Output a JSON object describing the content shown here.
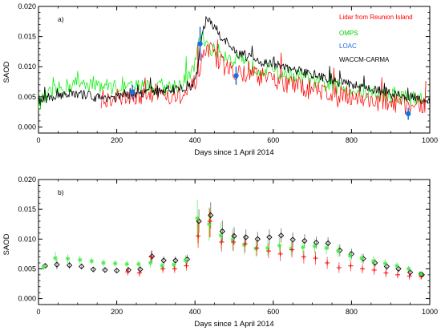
{
  "chart_data": [
    {
      "type": "line",
      "panel_label": "a)",
      "xlabel": "Days since 1 April 2014",
      "ylabel": "SAOD",
      "xlim": [
        0,
        1000
      ],
      "ylim": [
        -0.001,
        0.02
      ],
      "xticks": [
        "0",
        "200",
        "400",
        "600",
        "800",
        "1000"
      ],
      "yticks": [
        "0.000",
        "0.005",
        "0.010",
        "0.015",
        "0.020"
      ],
      "legend_position": "top-right",
      "series": [
        {
          "name": "Lidar from Reunion Island",
          "color": "#ff0000",
          "style": "noisy-line",
          "x": [
            160,
            190,
            220,
            250,
            280,
            310,
            340,
            370,
            395,
            410,
            420,
            440,
            460,
            480,
            500,
            520,
            540,
            560,
            580,
            600,
            630,
            660,
            690,
            720,
            750,
            780,
            810,
            840,
            870,
            900,
            930,
            960,
            990
          ],
          "y": [
            0.0045,
            0.005,
            0.0048,
            0.0052,
            0.0055,
            0.0058,
            0.0052,
            0.005,
            0.0065,
            0.009,
            0.0115,
            0.0125,
            0.011,
            0.0098,
            0.0095,
            0.0088,
            0.0092,
            0.0085,
            0.008,
            0.0078,
            0.0072,
            0.0068,
            0.0062,
            0.006,
            0.0058,
            0.0055,
            0.005,
            0.0045,
            0.0042,
            0.004,
            0.0038,
            0.0036,
            0.0035
          ]
        },
        {
          "name": "OMPS",
          "color": "#00ee00",
          "style": "noisy-line",
          "x": [
            0,
            30,
            60,
            90,
            120,
            150,
            180,
            210,
            240,
            270,
            300,
            330,
            360,
            390,
            405,
            415,
            425,
            440,
            460,
            480,
            500,
            520,
            540,
            560,
            580,
            600,
            630,
            660,
            690,
            720,
            750,
            780,
            810,
            840,
            870,
            900,
            930,
            960,
            990
          ],
          "y": [
            0.004,
            0.0055,
            0.0065,
            0.0072,
            0.0075,
            0.007,
            0.0068,
            0.0065,
            0.0066,
            0.0068,
            0.0065,
            0.0066,
            0.007,
            0.0085,
            0.012,
            0.0155,
            0.0145,
            0.013,
            0.0125,
            0.012,
            0.0112,
            0.0105,
            0.01,
            0.0098,
            0.0095,
            0.0092,
            0.0088,
            0.0085,
            0.0078,
            0.0072,
            0.0068,
            0.0065,
            0.006,
            0.0058,
            0.0055,
            0.0053,
            0.005,
            0.0047,
            0.0045
          ]
        },
        {
          "name": "LOAC",
          "color": "#1a6fdd",
          "style": "points-errorbars",
          "x": [
            240,
            413,
            505,
            945
          ],
          "y": [
            0.0058,
            0.0138,
            0.0085,
            0.0022
          ],
          "err": [
            0.0012,
            0.0028,
            0.0015,
            0.001
          ]
        },
        {
          "name": "WACCM-CARMA",
          "color": "#000000",
          "style": "noisy-line",
          "x": [
            0,
            20,
            40,
            60,
            80,
            100,
            120,
            140,
            160,
            180,
            200,
            220,
            240,
            260,
            280,
            300,
            320,
            340,
            360,
            380,
            395,
            405,
            415,
            425,
            435,
            450,
            470,
            490,
            510,
            530,
            550,
            570,
            590,
            610,
            630,
            650,
            670,
            690,
            710,
            730,
            750,
            770,
            790,
            810,
            830,
            850,
            870,
            890,
            910,
            930,
            950,
            970,
            990,
            1000
          ],
          "y": [
            0.0042,
            0.0048,
            0.005,
            0.0055,
            0.0056,
            0.0052,
            0.0054,
            0.005,
            0.0048,
            0.005,
            0.0049,
            0.0052,
            0.0055,
            0.0054,
            0.0058,
            0.006,
            0.0062,
            0.0063,
            0.0063,
            0.0065,
            0.0068,
            0.009,
            0.0145,
            0.017,
            0.018,
            0.0165,
            0.0148,
            0.0132,
            0.0122,
            0.0118,
            0.0112,
            0.0108,
            0.0105,
            0.0102,
            0.0098,
            0.0095,
            0.0092,
            0.0088,
            0.0085,
            0.0082,
            0.0078,
            0.0075,
            0.0072,
            0.007,
            0.0066,
            0.0063,
            0.006,
            0.0058,
            0.0055,
            0.0052,
            0.005,
            0.0047,
            0.0045,
            0.0044
          ]
        }
      ]
    },
    {
      "type": "scatter",
      "panel_label": "b)",
      "xlabel": "Days since 1 April 2014",
      "ylabel": "SAOD",
      "xlim": [
        0,
        1000
      ],
      "ylim": [
        -0.001,
        0.02
      ],
      "xticks": [
        "0",
        "200",
        "400",
        "600",
        "800",
        "1000"
      ],
      "yticks": [
        "0.000",
        "0.005",
        "0.010",
        "0.015",
        "0.020"
      ],
      "series": [
        {
          "marker": "diamond",
          "color": "#000000",
          "x": [
            15,
            45,
            77,
            108,
            138,
            168,
            198,
            228,
            258,
            288,
            318,
            348,
            378,
            408,
            438,
            468,
            498,
            528,
            558,
            588,
            618,
            648,
            678,
            708,
            738,
            768,
            798,
            828,
            858,
            888,
            918,
            948,
            978
          ],
          "y": [
            0.0055,
            0.0057,
            0.0056,
            0.0054,
            0.0049,
            0.0048,
            0.0047,
            0.0048,
            0.0049,
            0.0071,
            0.0064,
            0.0064,
            0.0066,
            0.013,
            0.014,
            0.0113,
            0.0105,
            0.0103,
            0.01,
            0.0103,
            0.0106,
            0.0099,
            0.0097,
            0.0094,
            0.0093,
            0.0081,
            0.0075,
            0.0067,
            0.006,
            0.0054,
            0.005,
            0.0044,
            0.004
          ],
          "err": [
            0.0004,
            0.0008,
            0.0006,
            0.0005,
            0.0004,
            0.0004,
            0.0004,
            0.0005,
            0.0006,
            0.001,
            0.0007,
            0.0007,
            0.0008,
            0.002,
            0.0022,
            0.0018,
            0.0015,
            0.0013,
            0.0012,
            0.0013,
            0.0012,
            0.0012,
            0.0011,
            0.001,
            0.001,
            0.001,
            0.0009,
            0.0008,
            0.0007,
            0.0006,
            0.0005,
            0.0005,
            0.0004
          ]
        },
        {
          "marker": "asterisk",
          "color": "#44ee44",
          "x": [
            15,
            45,
            77,
            108,
            138,
            168,
            198,
            228,
            258,
            288,
            318,
            348,
            378,
            408,
            438,
            468,
            498,
            528,
            558,
            588,
            618,
            648,
            678,
            708,
            738,
            768,
            798,
            828,
            858,
            888,
            918,
            948,
            978
          ],
          "y": [
            0.0053,
            0.0068,
            0.0067,
            0.0065,
            0.0063,
            0.006,
            0.0059,
            0.0058,
            0.0058,
            0.006,
            0.0055,
            0.0057,
            0.0064,
            0.0135,
            0.0125,
            0.0106,
            0.0099,
            0.009,
            0.0084,
            0.0085,
            0.0089,
            0.0084,
            0.0086,
            0.0088,
            0.0085,
            0.008,
            0.0072,
            0.0068,
            0.0063,
            0.0059,
            0.0055,
            0.005,
            0.0042
          ],
          "err": [
            0.0005,
            0.001,
            0.0008,
            0.0007,
            0.0006,
            0.0006,
            0.0006,
            0.0006,
            0.0006,
            0.0008,
            0.0008,
            0.0008,
            0.0009,
            0.003,
            0.0028,
            0.0022,
            0.0018,
            0.0016,
            0.0014,
            0.0013,
            0.0013,
            0.0012,
            0.0012,
            0.0012,
            0.0011,
            0.001,
            0.0009,
            0.0008,
            0.0008,
            0.0007,
            0.0006,
            0.0005,
            0.0004
          ]
        },
        {
          "marker": "plus",
          "color": "#ff0000",
          "x": [
            228,
            258,
            288,
            318,
            348,
            378,
            408,
            438,
            468,
            498,
            528,
            558,
            588,
            618,
            648,
            678,
            708,
            738,
            768,
            798,
            828,
            858,
            888,
            918,
            948,
            978
          ],
          "y": [
            0.0045,
            0.0043,
            0.007,
            0.005,
            0.005,
            0.0055,
            0.0105,
            0.013,
            0.0095,
            0.0095,
            0.0092,
            0.0085,
            0.008,
            0.0075,
            0.0082,
            0.007,
            0.0068,
            0.006,
            0.0052,
            0.0055,
            0.005,
            0.0048,
            0.0043,
            0.004,
            0.0038,
            0.0037
          ],
          "err": [
            0.0006,
            0.0006,
            0.001,
            0.0007,
            0.0007,
            0.0008,
            0.002,
            0.0022,
            0.0016,
            0.0015,
            0.0014,
            0.0013,
            0.0012,
            0.0012,
            0.0013,
            0.0011,
            0.0011,
            0.001,
            0.0009,
            0.0009,
            0.0008,
            0.0008,
            0.0007,
            0.0006,
            0.0006,
            0.0005
          ]
        }
      ]
    }
  ]
}
